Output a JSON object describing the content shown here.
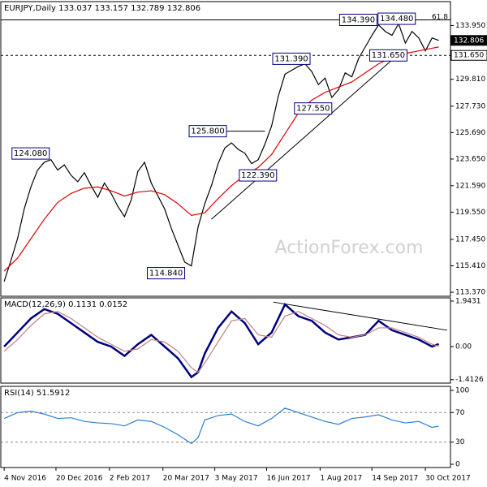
{
  "chart_data": [
    {
      "type": "line",
      "title": "EURJPY,Daily 133.037 133.157 132.789 132.806",
      "watermark": "ActionForex.com",
      "xlim": [
        -2,
        267
      ],
      "ylim": [
        113.06,
        135.8
      ],
      "yticks": [
        {
          "value": 113.37,
          "label": "113.370"
        },
        {
          "value": 115.41,
          "label": "115.410"
        },
        {
          "value": 117.45,
          "label": "117.450"
        },
        {
          "value": 119.55,
          "label": "119.550"
        },
        {
          "value": 121.59,
          "label": "121.590"
        },
        {
          "value": 123.65,
          "label": "123.650"
        },
        {
          "value": 125.69,
          "label": "125.690"
        },
        {
          "value": 127.73,
          "label": "127.730"
        },
        {
          "value": 129.81,
          "label": "129.810"
        },
        {
          "value": 133.95,
          "label": "133.950"
        }
      ],
      "series": [
        {
          "color": "#000000",
          "x": [
            0,
            4,
            8,
            12,
            16,
            20,
            24,
            28,
            32,
            36,
            40,
            44,
            48,
            52,
            56,
            60,
            64,
            68,
            72,
            76,
            80,
            84,
            88,
            92,
            96,
            100,
            104,
            108,
            112,
            116,
            120,
            124,
            128,
            132,
            136,
            140,
            144,
            148,
            152,
            156,
            160,
            164,
            168,
            172,
            176,
            180,
            184,
            188,
            192,
            196,
            200,
            204,
            208,
            212,
            216,
            220,
            224,
            228,
            232,
            236,
            240,
            244,
            248,
            252,
            256,
            260
          ],
          "values": [
            114.2,
            115.8,
            117.5,
            119.8,
            121.5,
            122.8,
            123.4,
            123.6,
            122.8,
            123.2,
            122.4,
            121.9,
            122.6,
            121.6,
            120.7,
            121.8,
            121.0,
            120.0,
            119.2,
            120.5,
            122.7,
            123.4,
            121.8,
            120.8,
            119.8,
            118.3,
            117.0,
            115.7,
            115.4,
            118.4,
            120.2,
            121.6,
            123.3,
            124.5,
            124.9,
            124.4,
            124.1,
            123.3,
            123.6,
            124.8,
            126.2,
            128.5,
            130.2,
            130.5,
            130.8,
            131.0,
            130.4,
            129.4,
            129.9,
            128.4,
            129.0,
            130.3,
            130.0,
            131.4,
            132.3,
            133.2,
            134.0,
            133.5,
            133.2,
            134.1,
            132.6,
            133.5,
            133.0,
            132.0,
            133.0,
            132.806
          ]
        },
        {
          "color": "#e00000",
          "x": [
            0,
            8,
            16,
            24,
            32,
            40,
            48,
            56,
            64,
            72,
            80,
            88,
            96,
            104,
            112,
            120,
            128,
            136,
            144,
            152,
            160,
            168,
            176,
            184,
            192,
            200,
            208,
            216,
            224,
            232,
            240,
            248,
            256,
            260
          ],
          "values": [
            115.0,
            116.0,
            117.5,
            119.0,
            120.3,
            121.0,
            121.4,
            121.5,
            121.2,
            120.8,
            121.1,
            121.2,
            120.9,
            120.2,
            119.3,
            119.5,
            120.6,
            121.6,
            122.4,
            123.0,
            124.0,
            125.6,
            127.2,
            128.2,
            128.8,
            129.2,
            129.6,
            130.3,
            131.0,
            131.5,
            131.8,
            132.0,
            132.2,
            132.3
          ]
        }
      ],
      "trendlines": [
        {
          "x": [
            124,
            232
          ],
          "values": [
            119.0,
            131.3
          ]
        },
        {
          "x": [
            133,
            156
          ],
          "values": [
            125.8,
            125.8
          ]
        }
      ],
      "annotations": [
        {
          "x": 27,
          "value": 124.08,
          "label": "124.080"
        },
        {
          "x": 108,
          "value": 114.84,
          "label": "114.840"
        },
        {
          "x": 133,
          "value": 125.8,
          "label": "125.800"
        },
        {
          "x": 163,
          "value": 122.39,
          "label": "122.390"
        },
        {
          "x": 183,
          "value": 131.39,
          "label": "131.390"
        },
        {
          "x": 196,
          "value": 127.55,
          "label": "127.550"
        },
        {
          "x": 223,
          "value": 134.39,
          "label": "134.390"
        },
        {
          "x": 246,
          "value": 134.48,
          "label": "134.480"
        },
        {
          "x": 241,
          "value": 131.65,
          "label": "131.650"
        }
      ],
      "levels": [
        {
          "value": 134.39,
          "style": "solid"
        },
        {
          "value": 131.65,
          "style": "dashed"
        }
      ],
      "fib": {
        "value": 134.6,
        "label": "61.8"
      },
      "price_tags": [
        {
          "value": 132.806,
          "label": "132.806"
        },
        {
          "value": 131.65,
          "label": "131.650"
        }
      ]
    },
    {
      "type": "line",
      "title": "MACD(12,26,9) 0.1131 0.0152",
      "xlim": [
        -2,
        267
      ],
      "ylim": [
        -1.56,
        2.08
      ],
      "yticks": [
        -1.4126,
        {
          "value": 0,
          "label": "0.00"
        },
        1.9431
      ],
      "series": [
        {
          "color": "#000080",
          "x": [
            0,
            8,
            16,
            24,
            32,
            40,
            48,
            56,
            64,
            72,
            80,
            88,
            96,
            104,
            112,
            116,
            120,
            128,
            136,
            144,
            152,
            160,
            168,
            176,
            184,
            192,
            200,
            208,
            216,
            224,
            232,
            240,
            248,
            256,
            260
          ],
          "values": [
            0.0,
            0.6,
            1.2,
            1.6,
            1.4,
            1.0,
            0.6,
            0.2,
            0.0,
            -0.4,
            0.1,
            0.5,
            0.0,
            -0.5,
            -1.3,
            -1.1,
            -0.3,
            0.8,
            1.5,
            1.0,
            0.1,
            0.6,
            1.8,
            1.3,
            1.1,
            0.6,
            0.3,
            0.4,
            0.5,
            1.1,
            0.7,
            0.5,
            0.3,
            0.0,
            0.1131
          ]
        },
        {
          "color": "#c08080",
          "x": [
            0,
            8,
            16,
            24,
            32,
            40,
            48,
            56,
            64,
            72,
            80,
            88,
            96,
            104,
            112,
            116,
            120,
            128,
            136,
            144,
            152,
            160,
            168,
            176,
            184,
            192,
            200,
            208,
            216,
            224,
            232,
            240,
            248,
            256,
            260
          ],
          "values": [
            -0.2,
            0.3,
            0.9,
            1.4,
            1.5,
            1.2,
            0.8,
            0.4,
            0.1,
            -0.2,
            -0.1,
            0.3,
            0.2,
            -0.2,
            -0.9,
            -1.1,
            -0.7,
            0.2,
            1.1,
            1.2,
            0.5,
            0.4,
            1.3,
            1.5,
            1.2,
            0.9,
            0.5,
            0.4,
            0.5,
            0.8,
            0.8,
            0.6,
            0.4,
            0.1,
            0.0152
          ]
        }
      ],
      "trendlines": [
        {
          "x": [
            161,
            265
          ],
          "values": [
            1.9,
            0.7
          ]
        }
      ]
    },
    {
      "type": "line",
      "title": "RSI(14) 51.5912",
      "xlim": [
        -2,
        267
      ],
      "ylim": [
        0,
        100
      ],
      "yticks": [
        0,
        30,
        70,
        100
      ],
      "levels": [
        30,
        70
      ],
      "xticks": [
        {
          "value": 0,
          "label": "4 Nov 2016"
        },
        {
          "value": 31,
          "label": "20 Dec 2016"
        },
        {
          "value": 63,
          "label": "2 Feb 2017"
        },
        {
          "value": 95,
          "label": "20 Mar 2017"
        },
        {
          "value": 126,
          "label": "3 May 2017"
        },
        {
          "value": 157,
          "label": "16 Jun 2017"
        },
        {
          "value": 189,
          "label": "1 Aug 2017"
        },
        {
          "value": 220,
          "label": "14 Sep 2017"
        },
        {
          "value": 252,
          "label": "30 Oct 2017"
        }
      ],
      "series": [
        {
          "color": "#2a7fd4",
          "x": [
            0,
            8,
            16,
            24,
            32,
            40,
            48,
            56,
            64,
            72,
            80,
            88,
            96,
            104,
            112,
            116,
            120,
            128,
            136,
            144,
            152,
            160,
            168,
            176,
            184,
            192,
            200,
            208,
            216,
            224,
            232,
            240,
            248,
            256,
            260
          ],
          "values": [
            62,
            70,
            72,
            68,
            62,
            63,
            58,
            56,
            55,
            52,
            60,
            58,
            50,
            40,
            28,
            36,
            60,
            66,
            68,
            58,
            52,
            62,
            76,
            70,
            64,
            58,
            54,
            62,
            64,
            67,
            60,
            56,
            58,
            50,
            51.5912
          ]
        }
      ]
    }
  ]
}
